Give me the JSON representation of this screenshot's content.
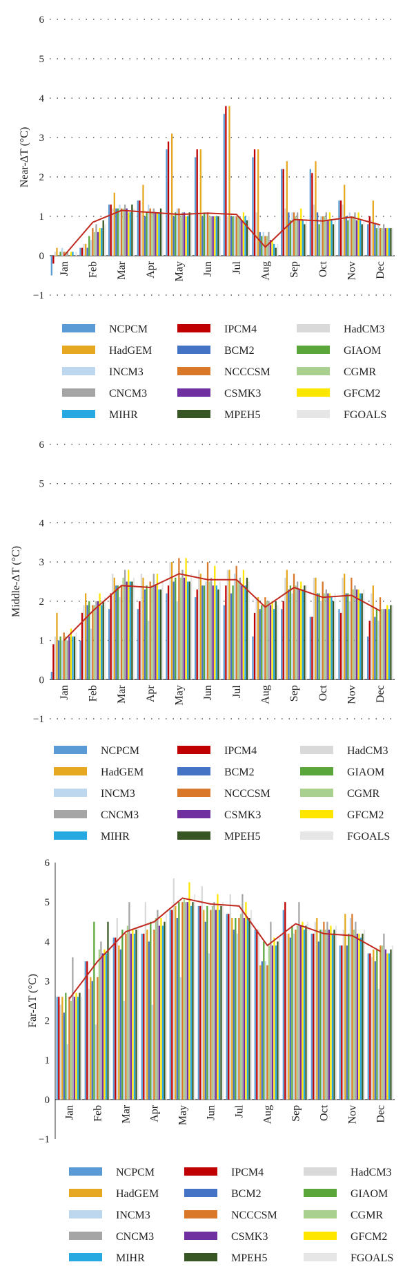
{
  "colors": {
    "NCPCM": "#5b9bd5",
    "HadGEM": "#e6a820",
    "INCM3": "#bdd7ee",
    "CNCM3": "#a5a5a5",
    "MIHR": "#26a9e0",
    "IPCM4": "#c00000",
    "BCM2": "#4472c4",
    "NCCCSM": "#d97828",
    "CSMK3": "#7030a0",
    "MPEH5": "#375623",
    "HadCM3": "#d9d9d9",
    "GIAOM": "#5aa63a",
    "CGMR": "#a9d08e",
    "GFCM2": "#ffe600",
    "FGOALS": "#e7e6e6",
    "ensemble_line": "#c0291f",
    "gridline": "#333333"
  },
  "legend": {
    "columns": [
      [
        "NCPCM",
        "HadGEM",
        "INCM3",
        "CNCM3",
        "MIHR"
      ],
      [
        "IPCM4",
        "BCM2",
        "NCCCSM",
        "CSMK3",
        "MPEH5"
      ],
      [
        "HadCM3",
        "GIAOM",
        "CGMR",
        "GFCM2",
        "FGOALS"
      ]
    ]
  },
  "chart_data": [
    {
      "type": "bar",
      "ylabel": "Near-ΔT (°C)",
      "ylim": [
        -1,
        6
      ],
      "yticks": [
        "6",
        "5",
        "4",
        "3",
        "2",
        "1",
        "0",
        "−1"
      ],
      "grid": "dotted",
      "legend_position": "bottom",
      "categories": [
        "Jan",
        "Feb",
        "Mar",
        "Apr",
        "May",
        "Jun",
        "Jul",
        "Aug",
        "Sep",
        "Oct",
        "Nov",
        "Dec"
      ],
      "series": [
        {
          "name": "NCPCM",
          "values": [
            -0.5,
            0.2,
            1.3,
            1.4,
            2.7,
            2.5,
            3.6,
            2.5,
            2.2,
            2.2,
            1.4,
            0.8
          ]
        },
        {
          "name": "IPCM4",
          "values": [
            -0.2,
            0.2,
            1.3,
            1.4,
            2.9,
            2.7,
            3.8,
            2.7,
            2.2,
            2.1,
            1.4,
            1.0
          ]
        },
        {
          "name": "HadCM3",
          "values": [
            0.1,
            0.3,
            1.2,
            1.1,
            1.1,
            1.1,
            1.0,
            1.1,
            1.2,
            1.3,
            1.3,
            0.9
          ]
        },
        {
          "name": "HadGEM",
          "values": [
            0.2,
            0.3,
            1.6,
            1.8,
            3.1,
            2.7,
            3.8,
            2.7,
            2.4,
            2.4,
            1.8,
            1.4
          ]
        },
        {
          "name": "BCM2",
          "values": [
            0.0,
            0.2,
            1.2,
            1.0,
            1.0,
            1.0,
            1.0,
            0.6,
            1.1,
            1.1,
            1.0,
            0.8
          ]
        },
        {
          "name": "GIAOM",
          "values": [
            0.1,
            0.5,
            1.2,
            1.1,
            1.1,
            1.1,
            1.0,
            0.5,
            0.9,
            0.8,
            0.9,
            0.7
          ]
        },
        {
          "name": "INCM3",
          "values": [
            0.2,
            0.4,
            1.3,
            1.3,
            1.2,
            1.1,
            1.0,
            0.6,
            1.1,
            1.0,
            1.1,
            0.8
          ]
        },
        {
          "name": "NCCCSM",
          "values": [
            0.1,
            0.7,
            1.2,
            1.2,
            1.2,
            1.1,
            1.0,
            0.5,
            1.1,
            1.0,
            1.0,
            0.7
          ]
        },
        {
          "name": "CGMR",
          "values": [
            0.1,
            0.6,
            1.2,
            1.1,
            1.0,
            1.0,
            1.0,
            0.5,
            1.0,
            1.0,
            1.0,
            0.7
          ]
        },
        {
          "name": "CNCM3",
          "values": [
            0.1,
            0.8,
            1.3,
            1.2,
            1.1,
            1.0,
            1.0,
            0.6,
            1.1,
            1.1,
            1.1,
            0.8
          ]
        },
        {
          "name": "CSMK3",
          "values": [
            0.0,
            0.6,
            1.2,
            1.1,
            1.1,
            1.0,
            0.9,
            0.4,
            0.9,
            0.9,
            0.9,
            0.7
          ]
        },
        {
          "name": "GFCM2",
          "values": [
            0.1,
            0.7,
            1.1,
            1.1,
            1.0,
            1.0,
            1.1,
            0.4,
            1.2,
            1.1,
            1.1,
            0.7
          ]
        },
        {
          "name": "MIHR",
          "values": [
            0.1,
            0.7,
            1.1,
            1.1,
            1.0,
            1.0,
            1.0,
            0.3,
            0.9,
            0.9,
            0.9,
            0.7
          ]
        },
        {
          "name": "MPEH5",
          "values": [
            0.0,
            0.9,
            1.3,
            1.2,
            1.1,
            1.0,
            0.9,
            0.2,
            0.8,
            0.8,
            0.8,
            0.7
          ]
        },
        {
          "name": "FGOALS",
          "values": [
            0.1,
            0.8,
            1.2,
            1.1,
            1.1,
            1.0,
            1.0,
            0.3,
            0.9,
            0.9,
            0.9,
            0.7
          ]
        }
      ],
      "ensemble": [
        0.0,
        0.85,
        1.15,
        1.1,
        1.05,
        1.08,
        1.05,
        0.22,
        0.92,
        0.88,
        0.98,
        0.78
      ]
    },
    {
      "type": "bar",
      "ylabel": "Middle-ΔT (°C)",
      "ylim": [
        -1,
        6
      ],
      "yticks": [
        "6",
        "5",
        "4",
        "3",
        "2",
        "1",
        "0",
        "−1"
      ],
      "grid": "dotted",
      "legend_position": "bottom",
      "categories": [
        "Jan",
        "Feb",
        "Mar",
        "Apr",
        "May",
        "Jun",
        "Jul",
        "Aug",
        "Sep",
        "Oct",
        "Nov",
        "Dec"
      ],
      "series": [
        {
          "name": "NCPCM",
          "values": [
            0.2,
            1.0,
            1.8,
            1.8,
            2.2,
            2.1,
            1.9,
            1.1,
            1.8,
            1.6,
            1.8,
            1.1
          ]
        },
        {
          "name": "IPCM4",
          "values": [
            0.9,
            1.7,
            2.2,
            2.0,
            2.4,
            2.3,
            2.4,
            1.7,
            2.0,
            1.6,
            1.7,
            1.5
          ]
        },
        {
          "name": "HadCM3",
          "values": [
            1.1,
            1.9,
            2.7,
            2.7,
            3.0,
            2.8,
            2.8,
            2.1,
            2.6,
            2.6,
            2.6,
            2.2
          ]
        },
        {
          "name": "HadGEM",
          "values": [
            1.7,
            2.2,
            2.6,
            2.6,
            3.0,
            2.7,
            2.8,
            2.1,
            2.8,
            2.6,
            2.7,
            2.4
          ]
        },
        {
          "name": "BCM2",
          "values": [
            1.0,
            1.9,
            2.4,
            2.3,
            2.5,
            2.4,
            2.2,
            1.8,
            2.3,
            2.2,
            2.2,
            1.6
          ]
        },
        {
          "name": "GIAOM",
          "values": [
            1.1,
            2.0,
            2.4,
            2.4,
            2.6,
            2.4,
            2.4,
            1.9,
            2.4,
            2.2,
            2.2,
            1.8
          ]
        },
        {
          "name": "INCM3",
          "values": [
            1.0,
            1.3,
            2.1,
            1.5,
            2.0,
            2.5,
            2.7,
            1.9,
            2.2,
            2.0,
            2.0,
            1.5
          ]
        },
        {
          "name": "NCCCSM",
          "values": [
            1.2,
            1.9,
            2.4,
            2.5,
            3.1,
            3.0,
            2.9,
            2.1,
            2.7,
            2.5,
            2.6,
            2.1
          ]
        },
        {
          "name": "CGMR",
          "values": [
            1.1,
            1.9,
            2.6,
            2.4,
            2.6,
            2.5,
            2.5,
            2.0,
            2.4,
            2.2,
            2.3,
            1.8
          ]
        },
        {
          "name": "CNCM3",
          "values": [
            1.0,
            2.0,
            2.8,
            2.7,
            2.8,
            2.6,
            2.6,
            2.0,
            2.5,
            2.3,
            2.4,
            1.8
          ]
        },
        {
          "name": "CSMK3",
          "values": [
            1.1,
            2.0,
            2.5,
            2.4,
            2.6,
            2.4,
            2.4,
            1.9,
            2.3,
            2.2,
            2.3,
            1.8
          ]
        },
        {
          "name": "GFCM2",
          "values": [
            1.3,
            2.2,
            2.8,
            2.7,
            3.1,
            2.9,
            2.8,
            2.0,
            2.5,
            2.2,
            2.3,
            1.9
          ]
        },
        {
          "name": "MIHR",
          "values": [
            1.1,
            1.9,
            2.5,
            2.3,
            2.5,
            2.4,
            2.4,
            1.8,
            2.3,
            2.1,
            2.2,
            1.8
          ]
        },
        {
          "name": "MPEH5",
          "values": [
            1.1,
            2.0,
            2.5,
            2.3,
            2.5,
            2.3,
            2.6,
            2.0,
            2.4,
            2.0,
            2.2,
            1.9
          ]
        },
        {
          "name": "FGOALS",
          "values": [
            1.2,
            2.1,
            2.6,
            2.5,
            2.7,
            2.5,
            2.5,
            1.9,
            2.4,
            2.2,
            2.3,
            1.9
          ]
        }
      ],
      "ensemble": [
        1.0,
        1.75,
        2.4,
        2.35,
        2.7,
        2.55,
        2.55,
        1.85,
        2.35,
        2.1,
        2.15,
        1.75
      ]
    },
    {
      "type": "bar",
      "ylabel": "Far-ΔT (°C)",
      "ylim": [
        -1,
        6
      ],
      "yticks": [
        "6",
        "5",
        "4",
        "3",
        "2",
        "1",
        "0",
        "−1"
      ],
      "grid": "none",
      "legend_position": "bottom",
      "categories": [
        "Jan",
        "Feb",
        "Mar",
        "Apr",
        "May",
        "Jun",
        "Jul",
        "Aug",
        "Sep",
        "Oct",
        "Nov",
        "Dec"
      ],
      "series": [
        {
          "name": "NCPCM",
          "values": [
            2.6,
            3.5,
            4.1,
            4.2,
            4.8,
            4.9,
            4.7,
            4.3,
            4.8,
            4.2,
            3.9,
            3.7
          ]
        },
        {
          "name": "IPCM4",
          "values": [
            2.6,
            3.5,
            4.1,
            4.2,
            4.8,
            4.9,
            4.7,
            4.3,
            5.0,
            4.2,
            3.9,
            3.7
          ]
        },
        {
          "name": "HadCM3",
          "values": [
            2.4,
            2.8,
            4.6,
            5.0,
            5.6,
            5.4,
            5.2,
            4.3,
            4.2,
            4.5,
            4.3,
            3.6
          ]
        },
        {
          "name": "HadGEM",
          "values": [
            2.6,
            3.1,
            3.9,
            4.3,
            4.9,
            4.8,
            4.6,
            3.4,
            4.2,
            4.6,
            4.7,
            3.8
          ]
        },
        {
          "name": "BCM2",
          "values": [
            2.2,
            3.0,
            3.8,
            4.0,
            4.6,
            4.5,
            4.3,
            3.5,
            4.1,
            4.0,
            3.9,
            3.5
          ]
        },
        {
          "name": "GIAOM",
          "values": [
            2.7,
            4.5,
            4.3,
            4.5,
            5.0,
            4.9,
            4.6,
            4.0,
            4.4,
            4.3,
            4.2,
            3.8
          ]
        },
        {
          "name": "INCM3",
          "values": [
            1.4,
            1.9,
            2.5,
            2.4,
            3.1,
            3.7,
            4.2,
            3.5,
            4.2,
            4.3,
            4.6,
            2.8
          ]
        },
        {
          "name": "NCCCSM",
          "values": [
            2.6,
            3.1,
            4.2,
            4.3,
            5.0,
            4.8,
            4.6,
            3.4,
            4.3,
            4.5,
            4.7,
            3.9
          ]
        },
        {
          "name": "CGMR",
          "values": [
            2.5,
            3.8,
            4.4,
            4.6,
            5.1,
            4.9,
            4.7,
            3.9,
            4.4,
            4.3,
            4.3,
            3.9
          ]
        },
        {
          "name": "CNCM3",
          "values": [
            3.6,
            4.0,
            5.0,
            4.8,
            5.0,
            5.0,
            5.2,
            4.5,
            5.0,
            4.5,
            4.5,
            4.2
          ]
        },
        {
          "name": "CSMK3",
          "values": [
            2.6,
            3.7,
            4.2,
            4.4,
            5.0,
            4.8,
            4.6,
            3.9,
            4.4,
            4.3,
            4.2,
            3.8
          ]
        },
        {
          "name": "GFCM2",
          "values": [
            2.7,
            3.8,
            4.3,
            4.6,
            5.5,
            5.2,
            5.0,
            4.1,
            4.5,
            4.4,
            4.2,
            3.7
          ]
        },
        {
          "name": "MIHR",
          "values": [
            2.6,
            3.7,
            4.2,
            4.4,
            4.9,
            4.8,
            4.6,
            3.9,
            4.3,
            4.2,
            4.1,
            3.7
          ]
        },
        {
          "name": "MPEH5",
          "values": [
            2.7,
            4.5,
            4.3,
            4.5,
            5.0,
            4.9,
            4.6,
            4.0,
            4.4,
            4.3,
            4.2,
            3.8
          ]
        },
        {
          "name": "FGOALS",
          "values": [
            2.6,
            3.8,
            4.4,
            4.7,
            5.2,
            5.0,
            4.8,
            4.1,
            4.5,
            4.4,
            4.3,
            3.9
          ]
        }
      ],
      "ensemble": [
        2.55,
        3.5,
        4.25,
        4.5,
        5.1,
        4.95,
        4.9,
        3.9,
        4.45,
        4.2,
        4.15,
        3.75
      ]
    }
  ]
}
